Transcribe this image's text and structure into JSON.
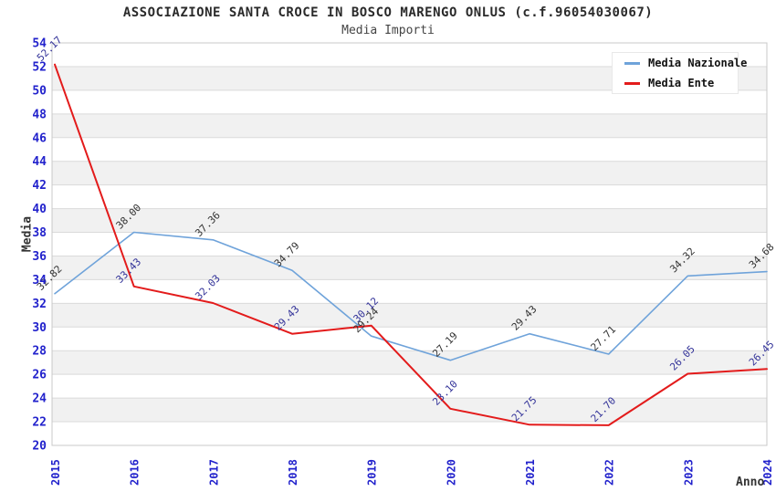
{
  "chart_data": {
    "type": "line",
    "title": "ASSOCIAZIONE SANTA CROCE IN BOSCO MARENGO ONLUS (c.f.96054030067)",
    "subtitle": "Media Importi",
    "xlabel": "Anno",
    "ylabel": "Media",
    "ylim": [
      20,
      54
    ],
    "ytick_step": 2,
    "grid": "horizontal-bands",
    "legend_position": "top-right",
    "categories": [
      "2015",
      "2016",
      "2017",
      "2018",
      "2019",
      "2020",
      "2021",
      "2022",
      "2023",
      "2024"
    ],
    "series": [
      {
        "name": "Media Nazionale",
        "color": "#6fa3da",
        "label_color": "#333333",
        "line_width": 1.6,
        "values": [
          32.82,
          38.0,
          37.36,
          34.79,
          29.24,
          27.19,
          29.43,
          27.71,
          34.32,
          34.68
        ],
        "labels": [
          "32.82",
          "38.00",
          "37.36",
          "34.79",
          "29.24",
          "27.19",
          "29.43",
          "27.71",
          "34.32",
          "34.68"
        ]
      },
      {
        "name": "Media Ente",
        "color": "#e31b1b",
        "label_color": "#333399",
        "line_width": 2.0,
        "values": [
          52.17,
          33.43,
          32.03,
          29.43,
          30.12,
          23.1,
          21.75,
          21.7,
          26.05,
          26.45
        ],
        "labels": [
          "52.17",
          "33.43",
          "32.03",
          "29.43",
          "30.12",
          "23.10",
          "21.75",
          "21.70",
          "26.05",
          "26.45"
        ]
      }
    ],
    "colors": {
      "axis_tick": "#2222cc",
      "band": "#f1f1f1",
      "gridline": "#dadada",
      "frame": "#c8c8c8"
    }
  }
}
